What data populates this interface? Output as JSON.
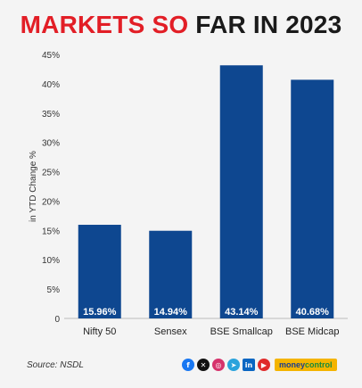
{
  "title": {
    "part1": "MARKETS SO",
    "part2": " FAR IN 2023"
  },
  "source": "Source: NSDL",
  "brand": {
    "part1": "money",
    "part2": "control"
  },
  "icons": [
    "facebook-icon",
    "x-icon",
    "instagram-icon",
    "telegram-icon",
    "linkedin-icon",
    "youtube-icon"
  ],
  "colors": {
    "bar": "#0e4790",
    "title_red": "#e21e26",
    "title_dark": "#1a1a1a",
    "background": "#f4f4f4"
  },
  "chart_data": {
    "type": "bar",
    "title": "MARKETS SO FAR IN 2023",
    "categories": [
      "Nifty 50",
      "Sensex",
      "BSE Smallcap",
      "BSE Midcap"
    ],
    "values": [
      15.96,
      14.94,
      43.14,
      40.68
    ],
    "value_labels": [
      "15.96%",
      "14.94%",
      "43.14%",
      "40.68%"
    ],
    "xlabel": "",
    "ylabel": "in YTD Change %",
    "ylim": [
      0,
      45
    ],
    "yticks": [
      0,
      5,
      10,
      15,
      20,
      25,
      30,
      35,
      40,
      45
    ],
    "ytick_labels": [
      "0",
      "5%",
      "10%",
      "15%",
      "20%",
      "25%",
      "30%",
      "35%",
      "40%",
      "45%"
    ],
    "grid": false,
    "legend": "none"
  }
}
